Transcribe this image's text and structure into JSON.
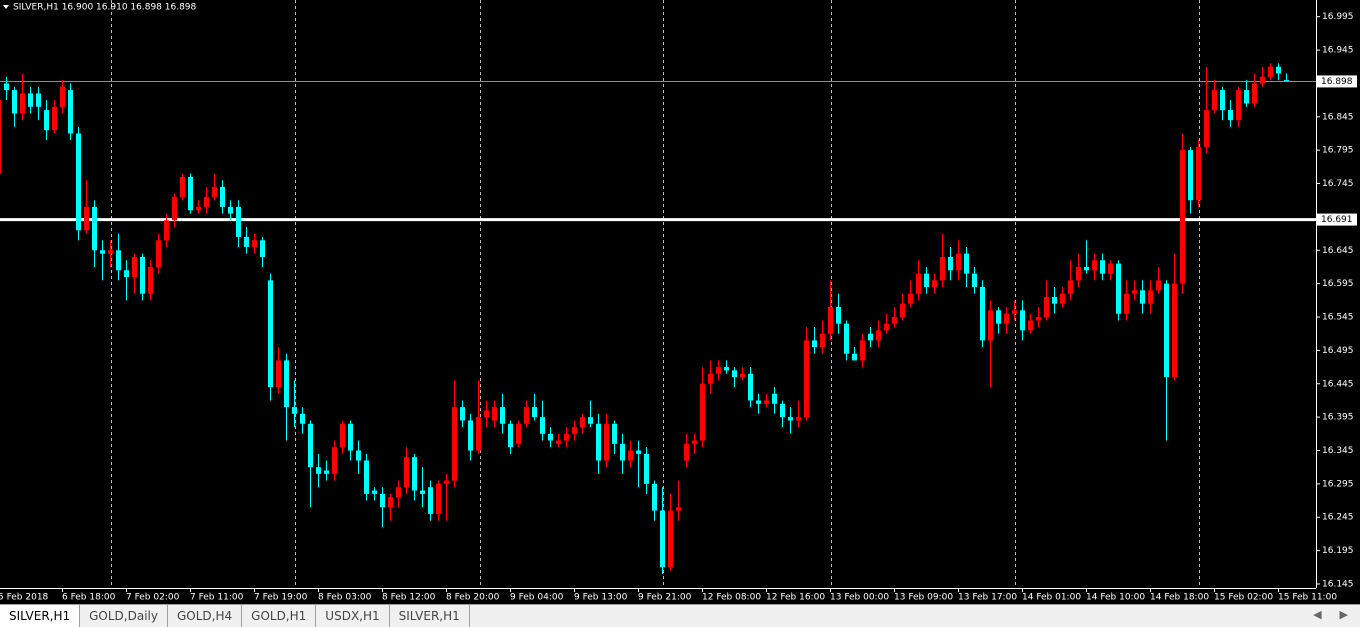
{
  "chart_data": {
    "type": "candlestick",
    "title": "SILVER,H1  16.900 16.910 16.898 16.898",
    "up_color": "#ff0000",
    "down_color": "#00ffff",
    "ylim": [
      16.115,
      17.02
    ],
    "yticks": [
      16.995,
      16.945,
      16.845,
      16.795,
      16.745,
      16.645,
      16.595,
      16.545,
      16.495,
      16.445,
      16.395,
      16.345,
      16.295,
      16.245,
      16.195,
      16.145
    ],
    "bid": 16.898,
    "level": 16.691,
    "categories": [
      "5 Feb 2018",
      null,
      null,
      null,
      null,
      null,
      null,
      null,
      "6 Feb 18:00",
      null,
      null,
      null,
      null,
      null,
      null,
      null,
      "7 Feb 02:00",
      null,
      null,
      null,
      null,
      null,
      null,
      null,
      "7 Feb 11:00",
      null,
      null,
      null,
      null,
      null,
      null,
      null,
      "7 Feb 19:00",
      null,
      null,
      null,
      null,
      null,
      null,
      null,
      "8 Feb 03:00",
      null,
      null,
      null,
      null,
      null,
      null,
      null,
      "8 Feb 12:00",
      null,
      null,
      null,
      null,
      null,
      null,
      null,
      "8 Feb 20:00",
      null,
      null,
      null,
      null,
      null,
      null,
      null,
      "9 Feb 04:00",
      null,
      null,
      null,
      null,
      null,
      null,
      null,
      "9 Feb 13:00",
      null,
      null,
      null,
      null,
      null,
      null,
      null,
      "9 Feb 21:00",
      null,
      null,
      null,
      null,
      null,
      null,
      null,
      "12 Feb 08:00",
      null,
      null,
      null,
      null,
      null,
      null,
      null,
      "12 Feb 16:00",
      null,
      null,
      null,
      null,
      null,
      null,
      null,
      "13 Feb 00:00",
      null,
      null,
      null,
      null,
      null,
      null,
      null,
      "13 Feb 09:00",
      null,
      null,
      null,
      null,
      null,
      null,
      null,
      "13 Feb 17:00",
      null,
      null,
      null,
      null,
      null,
      null,
      null,
      "14 Feb 01:00",
      null,
      null,
      null,
      null,
      null,
      null,
      null,
      "14 Feb 10:00",
      null,
      null,
      null,
      null,
      null,
      null,
      null,
      "14 Feb 18:00",
      null,
      null,
      null,
      null,
      null,
      null,
      null,
      "15 Feb 02:00",
      null,
      null,
      null,
      null,
      null,
      null,
      null,
      "15 Feb 11:00",
      null
    ],
    "ohlc": [
      [
        16.76,
        16.88,
        16.74,
        16.87
      ],
      [
        16.895,
        16.905,
        16.87,
        16.885
      ],
      [
        16.885,
        16.89,
        16.83,
        16.85
      ],
      [
        16.85,
        16.91,
        16.84,
        16.88
      ],
      [
        16.88,
        16.89,
        16.85,
        16.86
      ],
      [
        16.88,
        16.89,
        16.84,
        16.86
      ],
      [
        16.855,
        16.87,
        16.81,
        16.825
      ],
      [
        16.825,
        16.87,
        16.82,
        16.86
      ],
      [
        16.86,
        16.9,
        16.85,
        16.89
      ],
      [
        16.885,
        16.895,
        16.81,
        16.82
      ],
      [
        16.82,
        16.83,
        16.66,
        16.675
      ],
      [
        16.675,
        16.75,
        16.67,
        16.71
      ],
      [
        16.71,
        16.72,
        16.62,
        16.645
      ],
      [
        16.645,
        16.66,
        16.6,
        16.64
      ],
      [
        16.64,
        16.66,
        16.62,
        16.645
      ],
      [
        16.645,
        16.67,
        16.6,
        16.615
      ],
      [
        16.615,
        16.63,
        16.57,
        16.605
      ],
      [
        16.605,
        16.64,
        16.58,
        16.635
      ],
      [
        16.635,
        16.64,
        16.57,
        16.58
      ],
      [
        16.58,
        16.63,
        16.57,
        16.62
      ],
      [
        16.62,
        16.67,
        16.61,
        16.66
      ],
      [
        16.66,
        16.7,
        16.65,
        16.69
      ],
      [
        16.69,
        16.73,
        16.68,
        16.725
      ],
      [
        16.725,
        16.76,
        16.72,
        16.755
      ],
      [
        16.755,
        16.76,
        16.7,
        16.705
      ],
      [
        16.705,
        16.72,
        16.7,
        16.71
      ],
      [
        16.71,
        16.74,
        16.7,
        16.725
      ],
      [
        16.725,
        16.76,
        16.72,
        16.74
      ],
      [
        16.74,
        16.75,
        16.7,
        16.71
      ],
      [
        16.71,
        16.72,
        16.69,
        16.7
      ],
      [
        16.71,
        16.72,
        16.65,
        16.665
      ],
      [
        16.665,
        16.68,
        16.64,
        16.65
      ],
      [
        16.65,
        16.67,
        16.64,
        16.66
      ],
      [
        16.66,
        16.665,
        16.62,
        16.635
      ],
      [
        16.6,
        16.61,
        16.42,
        16.44
      ],
      [
        16.44,
        16.5,
        16.43,
        16.48
      ],
      [
        16.48,
        16.49,
        16.36,
        16.41
      ],
      [
        16.41,
        16.45,
        16.38,
        16.4
      ],
      [
        16.4,
        16.41,
        16.37,
        16.385
      ],
      [
        16.385,
        16.39,
        16.26,
        16.32
      ],
      [
        16.32,
        16.34,
        16.29,
        16.31
      ],
      [
        16.315,
        16.33,
        16.3,
        16.31
      ],
      [
        16.31,
        16.36,
        16.3,
        16.35
      ],
      [
        16.35,
        16.39,
        16.34,
        16.385
      ],
      [
        16.385,
        16.39,
        16.33,
        16.345
      ],
      [
        16.345,
        16.36,
        16.31,
        16.33
      ],
      [
        16.33,
        16.34,
        16.27,
        16.28
      ],
      [
        16.285,
        16.29,
        16.27,
        16.28
      ],
      [
        16.28,
        16.29,
        16.23,
        16.26
      ],
      [
        16.26,
        16.28,
        16.24,
        16.275
      ],
      [
        16.275,
        16.3,
        16.26,
        16.29
      ],
      [
        16.29,
        16.35,
        16.28,
        16.335
      ],
      [
        16.335,
        16.34,
        16.27,
        16.285
      ],
      [
        16.285,
        16.32,
        16.26,
        16.28
      ],
      [
        16.29,
        16.3,
        16.24,
        16.25
      ],
      [
        16.25,
        16.3,
        16.24,
        16.295
      ],
      [
        16.295,
        16.31,
        16.24,
        16.3
      ],
      [
        16.3,
        16.45,
        16.29,
        16.41
      ],
      [
        16.41,
        16.42,
        16.38,
        16.39
      ],
      [
        16.39,
        16.4,
        16.33,
        16.345
      ],
      [
        16.345,
        16.45,
        16.34,
        16.395
      ],
      [
        16.395,
        16.42,
        16.38,
        16.405
      ],
      [
        16.39,
        16.42,
        16.38,
        16.41
      ],
      [
        16.41,
        16.43,
        16.37,
        16.385
      ],
      [
        16.385,
        16.39,
        16.34,
        16.35
      ],
      [
        16.355,
        16.39,
        16.35,
        16.385
      ],
      [
        16.385,
        16.42,
        16.38,
        16.41
      ],
      [
        16.41,
        16.43,
        16.39,
        16.395
      ],
      [
        16.395,
        16.42,
        16.36,
        16.37
      ],
      [
        16.37,
        16.38,
        16.35,
        16.36
      ],
      [
        16.355,
        16.37,
        16.35,
        16.36
      ],
      [
        16.36,
        16.38,
        16.35,
        16.37
      ],
      [
        16.37,
        16.39,
        16.36,
        16.38
      ],
      [
        16.38,
        16.4,
        16.37,
        16.395
      ],
      [
        16.395,
        16.42,
        16.38,
        16.385
      ],
      [
        16.385,
        16.4,
        16.31,
        16.33
      ],
      [
        16.33,
        16.4,
        16.32,
        16.385
      ],
      [
        16.385,
        16.39,
        16.34,
        16.355
      ],
      [
        16.355,
        16.37,
        16.31,
        16.33
      ],
      [
        16.33,
        16.36,
        16.32,
        16.345
      ],
      [
        16.345,
        16.36,
        16.29,
        16.34
      ],
      [
        16.34,
        16.35,
        16.28,
        16.295
      ],
      [
        16.295,
        16.3,
        16.24,
        16.255
      ],
      [
        16.255,
        16.29,
        16.16,
        16.17
      ],
      [
        16.17,
        16.28,
        16.165,
        16.255
      ],
      [
        16.255,
        16.3,
        16.24,
        16.26
      ],
      [
        16.33,
        16.37,
        16.32,
        16.355
      ],
      [
        16.355,
        16.37,
        16.34,
        16.36
      ],
      [
        16.36,
        16.47,
        16.35,
        16.445
      ],
      [
        16.445,
        16.48,
        16.43,
        16.46
      ],
      [
        16.46,
        16.48,
        16.45,
        16.47
      ],
      [
        16.47,
        16.48,
        16.46,
        16.465
      ],
      [
        16.465,
        16.47,
        16.44,
        16.455
      ],
      [
        16.455,
        16.47,
        16.45,
        16.46
      ],
      [
        16.46,
        16.47,
        16.41,
        16.42
      ],
      [
        16.42,
        16.43,
        16.4,
        16.415
      ],
      [
        16.415,
        16.43,
        16.41,
        16.42
      ],
      [
        16.43,
        16.44,
        16.4,
        16.415
      ],
      [
        16.415,
        16.42,
        16.38,
        16.395
      ],
      [
        16.395,
        16.41,
        16.37,
        16.39
      ],
      [
        16.39,
        16.42,
        16.38,
        16.395
      ],
      [
        16.395,
        16.53,
        16.39,
        16.51
      ],
      [
        16.51,
        16.53,
        16.49,
        16.5
      ],
      [
        16.5,
        16.54,
        16.49,
        16.52
      ],
      [
        16.52,
        16.6,
        16.51,
        16.56
      ],
      [
        16.56,
        16.58,
        16.52,
        16.535
      ],
      [
        16.535,
        16.54,
        16.48,
        16.49
      ],
      [
        16.49,
        16.5,
        16.48,
        16.48
      ],
      [
        16.48,
        16.52,
        16.47,
        16.51
      ],
      [
        16.52,
        16.53,
        16.5,
        16.51
      ],
      [
        16.51,
        16.54,
        16.5,
        16.525
      ],
      [
        16.525,
        16.55,
        16.52,
        16.535
      ],
      [
        16.535,
        16.56,
        16.53,
        16.545
      ],
      [
        16.545,
        16.58,
        16.54,
        16.565
      ],
      [
        16.565,
        16.6,
        16.56,
        16.58
      ],
      [
        16.58,
        16.63,
        16.57,
        16.61
      ],
      [
        16.61,
        16.62,
        16.58,
        16.59
      ],
      [
        16.59,
        16.61,
        16.58,
        16.6
      ],
      [
        16.6,
        16.67,
        16.59,
        16.635
      ],
      [
        16.635,
        16.65,
        16.6,
        16.615
      ],
      [
        16.615,
        16.66,
        16.6,
        16.64
      ],
      [
        16.64,
        16.65,
        16.59,
        16.61
      ],
      [
        16.61,
        16.62,
        16.58,
        16.59
      ],
      [
        16.59,
        16.6,
        16.5,
        16.51
      ],
      [
        16.51,
        16.57,
        16.44,
        16.555
      ],
      [
        16.555,
        16.56,
        16.52,
        16.535
      ],
      [
        16.535,
        16.56,
        16.52,
        16.55
      ],
      [
        16.55,
        16.57,
        16.54,
        16.555
      ],
      [
        16.555,
        16.57,
        16.51,
        16.525
      ],
      [
        16.525,
        16.55,
        16.52,
        16.54
      ],
      [
        16.54,
        16.56,
        16.53,
        16.545
      ],
      [
        16.545,
        16.6,
        16.54,
        16.575
      ],
      [
        16.575,
        16.59,
        16.55,
        16.565
      ],
      [
        16.565,
        16.59,
        16.56,
        16.58
      ],
      [
        16.58,
        16.63,
        16.57,
        16.6
      ],
      [
        16.6,
        16.64,
        16.59,
        16.62
      ],
      [
        16.62,
        16.66,
        16.61,
        16.615
      ],
      [
        16.615,
        16.64,
        16.6,
        16.63
      ],
      [
        16.63,
        16.64,
        16.6,
        16.61
      ],
      [
        16.61,
        16.63,
        16.6,
        16.625
      ],
      [
        16.625,
        16.63,
        16.54,
        16.55
      ],
      [
        16.55,
        16.6,
        16.54,
        16.58
      ],
      [
        16.58,
        16.6,
        16.57,
        16.585
      ],
      [
        16.585,
        16.6,
        16.55,
        16.565
      ],
      [
        16.565,
        16.6,
        16.55,
        16.585
      ],
      [
        16.585,
        16.62,
        16.58,
        16.6
      ],
      [
        16.595,
        16.6,
        16.36,
        16.455
      ],
      [
        16.455,
        16.64,
        16.45,
        16.595
      ],
      [
        16.595,
        16.82,
        16.58,
        16.795
      ],
      [
        16.795,
        16.8,
        16.7,
        16.72
      ],
      [
        16.72,
        16.81,
        16.71,
        16.8
      ],
      [
        16.8,
        16.92,
        16.79,
        16.855
      ],
      [
        16.855,
        16.9,
        16.85,
        16.885
      ],
      [
        16.885,
        16.89,
        16.84,
        16.855
      ],
      [
        16.855,
        16.87,
        16.83,
        16.84
      ],
      [
        16.84,
        16.89,
        16.83,
        16.885
      ],
      [
        16.885,
        16.9,
        16.86,
        16.865
      ],
      [
        16.865,
        16.91,
        16.86,
        16.895
      ],
      [
        16.895,
        16.92,
        16.89,
        16.905
      ],
      [
        16.905,
        16.925,
        16.9,
        16.92
      ],
      [
        16.92,
        16.925,
        16.9,
        16.91
      ],
      [
        16.9,
        16.91,
        16.898,
        16.898
      ]
    ]
  },
  "tabs": [
    "SILVER,H1",
    "GOLD,Daily",
    "GOLD,H4",
    "GOLD,H1",
    "USDX,H1",
    "SILVER,H1"
  ],
  "active_tab": 0
}
